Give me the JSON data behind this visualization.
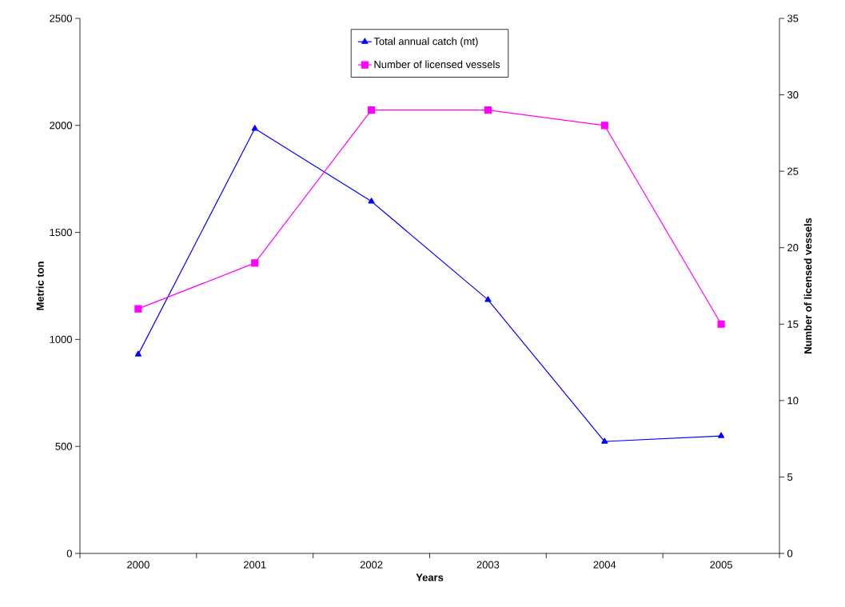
{
  "chart_data": {
    "type": "line",
    "xlabel": "Years",
    "ylabel": "Metric ton",
    "y2label": "Number of licensed vessels",
    "categories": [
      "2000",
      "2001",
      "2002",
      "2003",
      "2004",
      "2005"
    ],
    "series": [
      {
        "name": "Total annual catch (mt)",
        "color": "#0000ff",
        "marker": "triangle",
        "values": [
          930,
          1985,
          1645,
          1185,
          523,
          549
        ]
      },
      {
        "name": "Number of licensed vessels",
        "color": "#ff00ff",
        "marker": "square",
        "axis": "y2",
        "values": [
          16,
          19,
          29,
          29,
          28,
          15
        ]
      }
    ],
    "ylim": [
      0,
      2500
    ],
    "yticks": [
      0,
      500,
      1000,
      1500,
      2000,
      2500
    ],
    "y2lim": [
      0,
      35
    ],
    "y2ticks": [
      0,
      5,
      10,
      15,
      20,
      25,
      30,
      35
    ],
    "grid": false,
    "legend": "top",
    "line_style": "solid"
  }
}
